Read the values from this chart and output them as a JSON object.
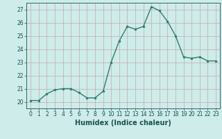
{
  "x": [
    0,
    1,
    2,
    3,
    4,
    5,
    6,
    7,
    8,
    9,
    10,
    11,
    12,
    13,
    14,
    15,
    16,
    17,
    18,
    19,
    20,
    21,
    22,
    23
  ],
  "y": [
    20.1,
    20.1,
    20.6,
    20.9,
    21.0,
    21.0,
    20.7,
    20.3,
    20.3,
    20.8,
    23.0,
    24.6,
    25.7,
    25.5,
    25.7,
    27.2,
    26.9,
    26.1,
    25.0,
    23.4,
    23.3,
    23.4,
    23.1,
    23.1
  ],
  "line_color": "#2e7d6e",
  "marker_color": "#2e7d6e",
  "bg_color": "#cdecea",
  "grid_color_h": "#c8a8a8",
  "grid_color_v": "#c8a8a8",
  "xlabel": "Humidex (Indice chaleur)",
  "xlim": [
    -0.5,
    23.5
  ],
  "ylim": [
    19.5,
    27.5
  ],
  "yticks": [
    20,
    21,
    22,
    23,
    24,
    25,
    26,
    27
  ],
  "xticks": [
    0,
    1,
    2,
    3,
    4,
    5,
    6,
    7,
    8,
    9,
    10,
    11,
    12,
    13,
    14,
    15,
    16,
    17,
    18,
    19,
    20,
    21,
    22,
    23
  ],
  "tick_label_fontsize": 5.5,
  "xlabel_fontsize": 7,
  "linewidth": 1.0,
  "markersize": 2.0,
  "label_color": "#1a5050"
}
